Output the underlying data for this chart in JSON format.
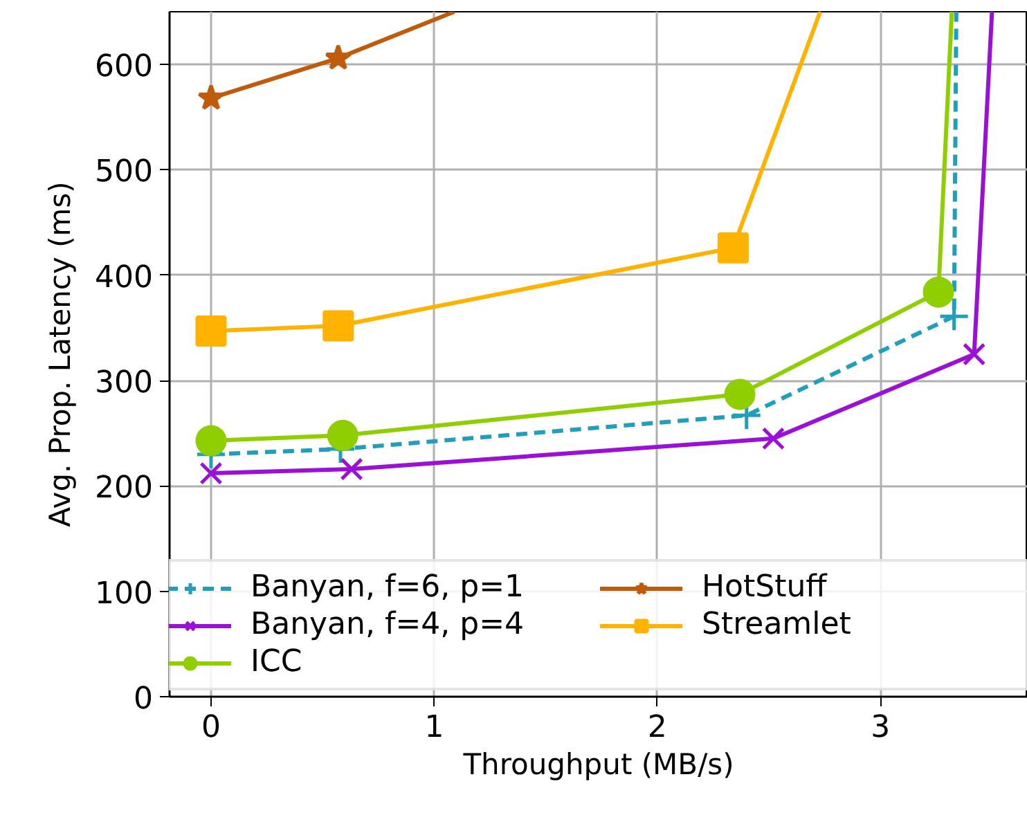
{
  "chart_data": {
    "type": "line",
    "xlabel": "Throughput (MB/s)",
    "ylabel": "Avg. Prop. Latency (ms)",
    "xlim": [
      -0.186,
      3.66
    ],
    "ylim": [
      0,
      650
    ],
    "xticks": [
      0,
      1,
      2,
      3
    ],
    "yticks": [
      0,
      100,
      200,
      300,
      400,
      500,
      600
    ],
    "grid": true,
    "legend": "bottom",
    "series": [
      {
        "name": "Banyan, f=6, p=1",
        "color": "#219ebc",
        "marker": "cross",
        "line_style": "dashed",
        "x": [
          0,
          0.58,
          2.4,
          3.33,
          3.34
        ],
        "values": [
          230,
          235,
          267,
          361,
          650
        ]
      },
      {
        "name": "Banyan, f=4, p=4",
        "color": "#9b10d6",
        "marker": "x",
        "line_style": "solid",
        "x": [
          0,
          0.63,
          2.52,
          3.42,
          3.5
        ],
        "values": [
          212,
          216,
          245,
          325,
          650
        ]
      },
      {
        "name": "ICC",
        "color": "#8fce00",
        "marker": "circle",
        "line_style": "solid",
        "x": [
          0,
          0.59,
          2.37,
          3.26,
          3.32
        ],
        "values": [
          243,
          248,
          287,
          384,
          650
        ]
      },
      {
        "name": "HotStuff",
        "color": "#bf5b0b",
        "marker": "star",
        "line_style": "solid",
        "x": [
          0,
          0.57,
          1.09
        ],
        "values": [
          568,
          606,
          650
        ]
      },
      {
        "name": "Streamlet",
        "color": "#ffb300",
        "marker": "square",
        "line_style": "solid",
        "x": [
          0,
          0.57,
          2.34,
          2.73
        ],
        "values": [
          347,
          352,
          426,
          650
        ]
      }
    ]
  }
}
